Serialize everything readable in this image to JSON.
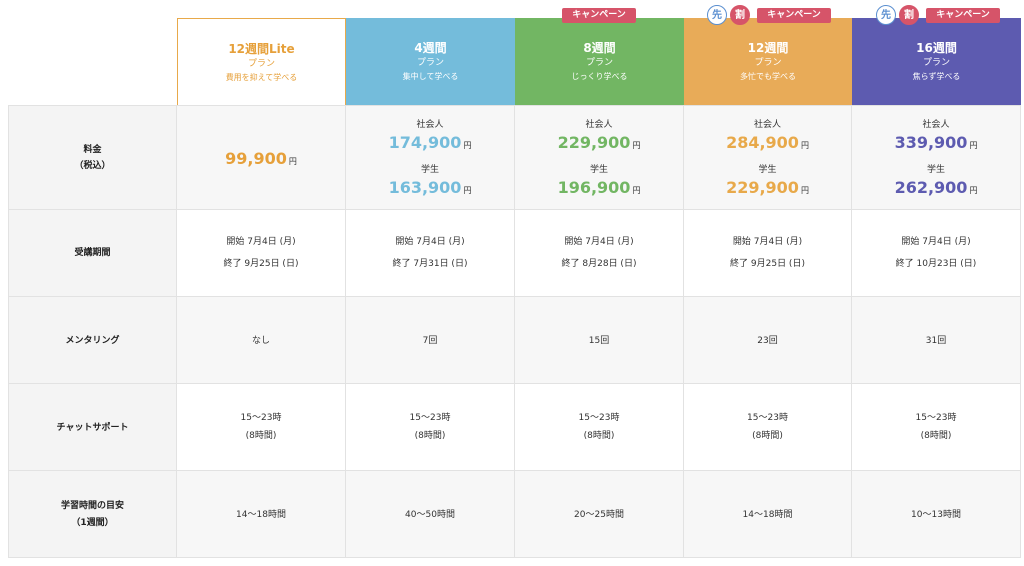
{
  "plans": [
    {
      "title": "12週間Lite",
      "line2": "プラン",
      "line3": "費用を抑えて学べる"
    },
    {
      "title": "4週間",
      "line2": "プラン",
      "line3": "集中して学べる"
    },
    {
      "title": "8週間",
      "line2": "プラン",
      "line3": "じっくり学べる"
    },
    {
      "title": "12週間",
      "line2": "プラン",
      "line3": "多忙でも学べる"
    },
    {
      "title": "16週間",
      "line2": "プラン",
      "line3": "焦らず学べる"
    }
  ],
  "badges": {
    "campaign": "キャンペーン",
    "saki": "先",
    "wari": "割"
  },
  "rows": {
    "price_label_1": "料金",
    "price_label_2": "（税込）",
    "period_label": "受講期間",
    "mentoring_label": "メンタリング",
    "chat_label": "チャットサポート",
    "study_label_1": "学習時間の目安",
    "study_label_2": "（1週間）"
  },
  "price": {
    "yen": "円",
    "worker": "社会人",
    "student": "学生",
    "lite": "99,900",
    "p4w_worker": "174,900",
    "p4w_student": "163,900",
    "p8w_worker": "229,900",
    "p8w_student": "196,900",
    "p12w_worker": "284,900",
    "p12w_student": "229,900",
    "p16w_worker": "339,900",
    "p16w_student": "262,900"
  },
  "period": [
    {
      "start": "開始 7月4日 (月)",
      "end": "終了 9月25日 (日)"
    },
    {
      "start": "開始 7月4日 (月)",
      "end": "終了 7月31日 (日)"
    },
    {
      "start": "開始 7月4日 (月)",
      "end": "終了 8月28日 (日)"
    },
    {
      "start": "開始 7月4日 (月)",
      "end": "終了 9月25日 (日)"
    },
    {
      "start": "開始 7月4日 (月)",
      "end": "終了 10月23日 (日)"
    }
  ],
  "mentoring": [
    "なし",
    "7回",
    "15回",
    "23回",
    "31回"
  ],
  "chat": {
    "hours": "15〜23時",
    "duration": "(8時間)"
  },
  "study": [
    "14〜18時間",
    "40〜50時間",
    "20〜25時間",
    "14〜18時間",
    "10〜13時間"
  ],
  "colors": {
    "lite": "#e6a03a",
    "w4": "#74bcdb",
    "w8": "#72b663",
    "w12": "#e8ab58",
    "w16": "#5d5bb0",
    "campaign": "#d65469"
  }
}
